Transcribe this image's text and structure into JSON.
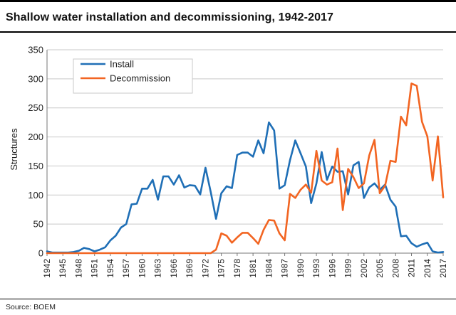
{
  "title": "Shallow water installation and decommissioning, 1942-2017",
  "source": "Source: BOEM",
  "chart_data": {
    "type": "line",
    "ylabel": "Structures",
    "xlabel": "",
    "ylim": [
      0,
      350
    ],
    "yticks": [
      0,
      50,
      100,
      150,
      200,
      250,
      300,
      350
    ],
    "xlim": [
      1942,
      2017
    ],
    "xticks": [
      1942,
      1945,
      1948,
      1951,
      1954,
      1957,
      1960,
      1963,
      1966,
      1969,
      1972,
      1975,
      1978,
      1981,
      1984,
      1987,
      1990,
      1993,
      1996,
      1999,
      2002,
      2005,
      2008,
      2011,
      2014,
      2017
    ],
    "grid": true,
    "legend_position": "top-left",
    "x": [
      1942,
      1943,
      1944,
      1945,
      1946,
      1947,
      1948,
      1949,
      1950,
      1951,
      1952,
      1953,
      1954,
      1955,
      1956,
      1957,
      1958,
      1959,
      1960,
      1961,
      1962,
      1963,
      1964,
      1965,
      1966,
      1967,
      1968,
      1969,
      1970,
      1971,
      1972,
      1973,
      1974,
      1975,
      1976,
      1977,
      1978,
      1979,
      1980,
      1981,
      1982,
      1983,
      1984,
      1985,
      1986,
      1987,
      1988,
      1989,
      1990,
      1991,
      1992,
      1993,
      1994,
      1995,
      1996,
      1997,
      1998,
      1999,
      2000,
      2001,
      2002,
      2003,
      2004,
      2005,
      2006,
      2007,
      2008,
      2009,
      2010,
      2011,
      2012,
      2013,
      2014,
      2015,
      2016,
      2017
    ],
    "series": [
      {
        "name": "Install",
        "color": "#1f6fb6",
        "values": [
          3,
          1,
          1,
          1,
          1,
          2,
          4,
          9,
          7,
          3,
          6,
          10,
          22,
          30,
          44,
          50,
          84,
          85,
          111,
          111,
          126,
          92,
          132,
          132,
          118,
          134,
          113,
          117,
          116,
          101,
          147,
          105,
          59,
          103,
          115,
          112,
          169,
          173,
          173,
          166,
          194,
          172,
          225,
          211,
          111,
          117,
          160,
          194,
          172,
          149,
          86,
          120,
          174,
          126,
          149,
          140,
          141,
          101,
          151,
          157,
          95,
          113,
          120,
          109,
          118,
          92,
          80,
          29,
          30,
          17,
          11,
          15,
          18,
          3,
          1,
          2
        ]
      },
      {
        "name": "Decommission",
        "color": "#f26522",
        "values": [
          0,
          0,
          0,
          0,
          0,
          0,
          0,
          0,
          0,
          0,
          0,
          0,
          0,
          0,
          0,
          0,
          0,
          0,
          0,
          0,
          0,
          0,
          0,
          0,
          0,
          0,
          0,
          0,
          0,
          0,
          0,
          0,
          6,
          34,
          30,
          18,
          27,
          35,
          35,
          26,
          16,
          40,
          57,
          56,
          34,
          22,
          102,
          95,
          109,
          118,
          104,
          176,
          125,
          118,
          122,
          180,
          74,
          145,
          131,
          112,
          120,
          168,
          195,
          103,
          116,
          159,
          157,
          235,
          220,
          292,
          288,
          226,
          201,
          125,
          201,
          96
        ]
      }
    ]
  }
}
